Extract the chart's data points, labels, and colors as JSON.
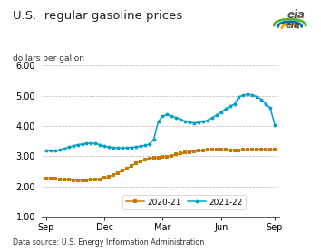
{
  "title": "U.S.  regular gasoline prices",
  "ylabel": "dollars per gallon",
  "xlabel_ticks": [
    "Sep",
    "Dec",
    "Mar",
    "Jun",
    "Sep"
  ],
  "xlabel_tick_positions": [
    0,
    13,
    26,
    39,
    51
  ],
  "ylim": [
    1.0,
    6.0
  ],
  "yticks": [
    1.0,
    2.0,
    3.0,
    4.0,
    5.0,
    6.0
  ],
  "background_color": "#ffffff",
  "grid_color": "#b8b8b8",
  "source_text": "Data source: U.S. Energy Information Administration",
  "series_2020_21": {
    "label": "2020-21",
    "color": "#c87800",
    "marker": "s",
    "values": [
      2.27,
      2.27,
      2.25,
      2.23,
      2.22,
      2.22,
      2.21,
      2.21,
      2.2,
      2.21,
      2.22,
      2.23,
      2.24,
      2.28,
      2.33,
      2.38,
      2.45,
      2.53,
      2.6,
      2.68,
      2.76,
      2.83,
      2.89,
      2.93,
      2.95,
      2.94,
      2.97,
      2.99,
      3.02,
      3.06,
      3.09,
      3.12,
      3.14,
      3.16,
      3.18,
      3.2,
      3.21,
      3.22,
      3.23,
      3.22,
      3.21,
      3.2,
      3.2,
      3.2,
      3.21,
      3.22,
      3.22,
      3.22,
      3.23,
      3.22,
      3.22,
      3.22
    ]
  },
  "series_2021_22": {
    "label": "2021-22",
    "color": "#00a0c8",
    "marker": "o",
    "values": [
      3.18,
      3.18,
      3.19,
      3.21,
      3.25,
      3.3,
      3.34,
      3.38,
      3.4,
      3.42,
      3.43,
      3.42,
      3.38,
      3.33,
      3.3,
      3.28,
      3.27,
      3.27,
      3.28,
      3.29,
      3.31,
      3.33,
      3.36,
      3.4,
      3.56,
      4.15,
      4.33,
      4.38,
      4.32,
      4.28,
      4.22,
      4.15,
      4.12,
      4.1,
      4.12,
      4.15,
      4.19,
      4.27,
      4.36,
      4.46,
      4.56,
      4.65,
      4.72,
      4.97,
      5.01,
      5.05,
      5.02,
      4.97,
      4.88,
      4.72,
      4.59,
      4.04
    ]
  },
  "figsize": [
    3.54,
    2.78
  ],
  "dpi": 100
}
